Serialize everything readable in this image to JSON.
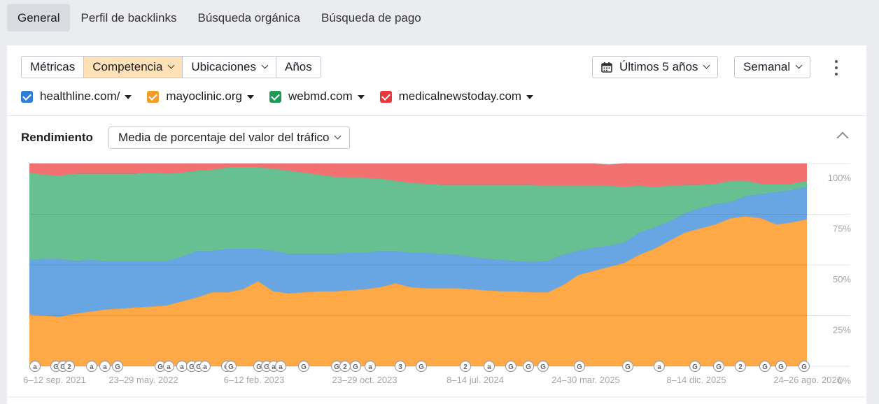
{
  "topnav": {
    "tabs": [
      {
        "label": "General",
        "active": true
      },
      {
        "label": "Perfil de backlinks",
        "active": false
      },
      {
        "label": "Búsqueda orgánica",
        "active": false
      },
      {
        "label": "Búsqueda de pago",
        "active": false
      }
    ]
  },
  "toolbar": {
    "segments": [
      {
        "label": "Métricas",
        "active": false,
        "dropdown": false
      },
      {
        "label": "Competencia",
        "active": true,
        "dropdown": true
      },
      {
        "label": "Ubicaciones",
        "active": false,
        "dropdown": true
      },
      {
        "label": "Años",
        "active": false,
        "dropdown": false
      }
    ],
    "period_label": "Últimos 5 años",
    "granularity_label": "Semanal",
    "accent_color": "#ffe1b8"
  },
  "domains": [
    {
      "label": "healthline.com/",
      "color": "#2f7ed8"
    },
    {
      "label": "mayoclinic.org",
      "color": "#f59d2a"
    },
    {
      "label": "webmd.com",
      "color": "#1e9a55"
    },
    {
      "label": "medicalnewstoday.com",
      "color": "#e6383d"
    }
  ],
  "performance": {
    "title": "Rendimiento",
    "metric_label": "Media de porcentaje del valor del tráfico"
  },
  "chart_data": {
    "type": "area",
    "stacked": true,
    "ylim": [
      0,
      100
    ],
    "yticks": [
      "100%",
      "75%",
      "50%",
      "25%",
      "0%"
    ],
    "x_labels": [
      "6–12 sep. 2021",
      "23–29 may. 2022",
      "6–12 feb. 2023",
      "23–29 oct. 2023",
      "8–14 jul. 2024",
      "24–30 mar. 2025",
      "8–14 dic. 2025",
      "24–26 ago. 2026"
    ],
    "x_index": [
      0,
      1,
      2,
      3,
      4,
      5,
      6,
      7,
      8,
      9,
      10,
      11,
      12,
      13,
      14,
      15,
      16,
      17,
      18,
      19,
      20,
      21,
      22,
      23,
      24,
      25,
      26,
      27,
      28,
      29,
      30,
      31,
      32,
      33,
      34,
      35,
      36,
      37,
      38,
      39,
      40,
      41,
      42,
      43,
      44,
      45,
      46,
      47,
      48,
      49,
      50,
      51
    ],
    "series": [
      {
        "name": "mayoclinic.org",
        "color": "#fea846",
        "values": [
          25.5,
          25,
          24.5,
          26,
          27,
          28,
          28.5,
          29,
          29.5,
          30,
          32,
          34,
          36.5,
          36.5,
          38,
          42,
          37,
          36,
          36.5,
          37,
          37,
          37.5,
          38,
          39,
          41,
          39,
          38.5,
          38.5,
          38.5,
          38,
          37.5,
          37,
          37,
          36.5,
          36.5,
          40,
          45,
          47,
          49,
          51,
          55,
          58,
          62,
          66,
          68,
          70,
          73,
          74,
          73,
          70,
          71,
          72.5
        ]
      },
      {
        "name": "healthline.com/",
        "color": "#68a6e3",
        "values": [
          27,
          28,
          28.5,
          26,
          25.5,
          24,
          23.5,
          23,
          22.5,
          22,
          22,
          23,
          20.5,
          21.5,
          20,
          16,
          20,
          19.5,
          19,
          18.5,
          18.5,
          18.5,
          18,
          18,
          16,
          17,
          17.5,
          17,
          16.5,
          16,
          15.5,
          15.5,
          15,
          15,
          15.5,
          15,
          12,
          11.5,
          10.5,
          10,
          11,
          10.5,
          9.5,
          9.5,
          10,
          10,
          8,
          10,
          12,
          16,
          16,
          16
        ]
      },
      {
        "name": "webmd.com",
        "color": "#66c092",
        "values": [
          43,
          41.5,
          41,
          43,
          42.5,
          43,
          43,
          43,
          43.5,
          43,
          41.5,
          39.5,
          40,
          40,
          40,
          40,
          40.5,
          41,
          40,
          39,
          38,
          37,
          37,
          35.5,
          34.5,
          34.5,
          34,
          34,
          34.5,
          35.5,
          36.5,
          37,
          37.5,
          38,
          37,
          34,
          32,
          30.5,
          29.5,
          27.5,
          23,
          20,
          17.5,
          14,
          11.5,
          10,
          10.5,
          7.5,
          5,
          4,
          3,
          3
        ]
      },
      {
        "name": "medicalnewstoday.com",
        "color": "#f27070",
        "values": [
          4.5,
          5.5,
          6,
          5,
          5,
          5,
          5,
          5,
          4.5,
          5,
          4.5,
          3.5,
          3,
          2,
          2,
          2,
          2.5,
          3.5,
          4.5,
          5.5,
          6.5,
          7,
          7,
          7.5,
          8.5,
          9.5,
          10,
          10.5,
          10.5,
          10.5,
          10.5,
          10.5,
          10.5,
          10.5,
          11,
          11,
          11,
          11,
          10.5,
          11.5,
          11,
          11.5,
          11,
          10.5,
          10.5,
          10,
          8.5,
          8.5,
          10,
          10,
          10,
          8.5
        ]
      }
    ],
    "annotations": [
      "a",
      "G",
      "G",
      "2",
      "a",
      "a",
      "G",
      "G",
      "a",
      "a",
      "G",
      "G",
      "a",
      "G",
      "G",
      "G",
      "G",
      "a",
      "a",
      "G",
      "G",
      "2",
      "G",
      "a",
      "3",
      "G",
      "2",
      "a",
      "G",
      "G",
      "G",
      "G",
      "G",
      "a",
      "G",
      "G",
      "2",
      "G",
      "G",
      "G"
    ],
    "grid": true
  }
}
